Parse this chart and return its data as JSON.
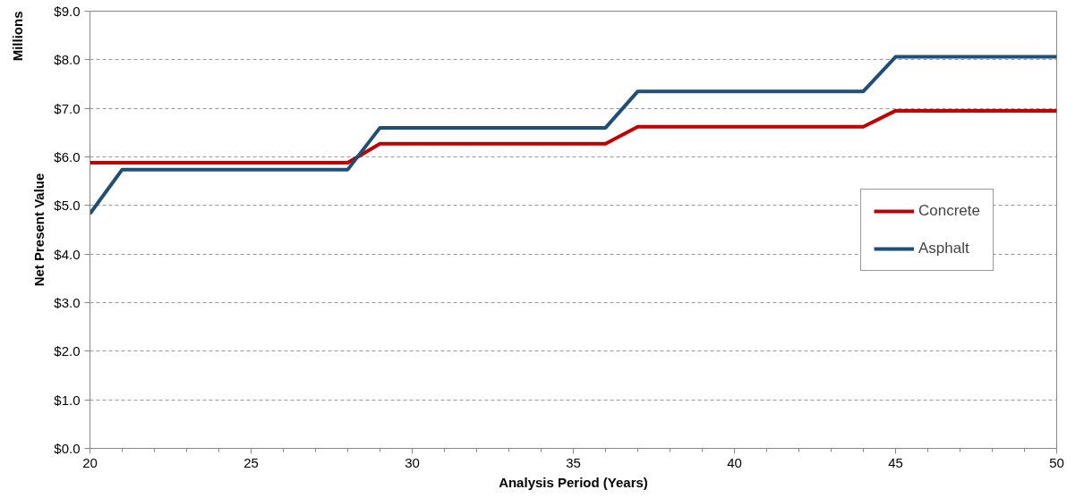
{
  "chart_data": {
    "type": "line",
    "xlabel": "Analysis Period (Years)",
    "ylabel": "Net Present Value",
    "annotations": [
      "Millions"
    ],
    "series": [
      {
        "name": "Concrete",
        "color": "#c00000",
        "x": [
          20,
          28,
          29,
          36,
          37,
          44,
          45,
          50
        ],
        "values": [
          5.88,
          5.88,
          6.27,
          6.27,
          6.62,
          6.62,
          6.95,
          6.95
        ]
      },
      {
        "name": "Asphalt",
        "color": "#1f4e79",
        "x": [
          20,
          21,
          28,
          29,
          36,
          37,
          44,
          45,
          50
        ],
        "values": [
          4.83,
          5.74,
          5.74,
          6.6,
          6.6,
          7.35,
          7.35,
          8.06,
          8.06
        ]
      }
    ],
    "xlim": [
      20,
      50
    ],
    "xticks": [
      20,
      {
        "value": 21,
        "label": null
      },
      {
        "value": 22,
        "label": null
      },
      {
        "value": 23,
        "label": null
      },
      {
        "value": 24,
        "label": null
      },
      25,
      {
        "value": 26,
        "label": null
      },
      {
        "value": 27,
        "label": null
      },
      {
        "value": 28,
        "label": null
      },
      {
        "value": 29,
        "label": null
      },
      30,
      {
        "value": 31,
        "label": null
      },
      {
        "value": 32,
        "label": null
      },
      {
        "value": 33,
        "label": null
      },
      {
        "value": 34,
        "label": null
      },
      35,
      {
        "value": 36,
        "label": null
      },
      {
        "value": 37,
        "label": null
      },
      {
        "value": 38,
        "label": null
      },
      {
        "value": 39,
        "label": null
      },
      40,
      {
        "value": 41,
        "label": null
      },
      {
        "value": 42,
        "label": null
      },
      {
        "value": 43,
        "label": null
      },
      {
        "value": 44,
        "label": null
      },
      45,
      {
        "value": 46,
        "label": null
      },
      {
        "value": 47,
        "label": null
      },
      {
        "value": 48,
        "label": null
      },
      {
        "value": 49,
        "label": null
      },
      50
    ],
    "ylim": [
      0,
      9
    ],
    "yticks": [
      {
        "value": 0,
        "label": "$0.0"
      },
      {
        "value": 1,
        "label": "$1.0"
      },
      {
        "value": 2,
        "label": "$2.0"
      },
      {
        "value": 3,
        "label": "$3.0"
      },
      {
        "value": 4,
        "label": "$4.0"
      },
      {
        "value": 5,
        "label": "$5.0"
      },
      {
        "value": 6,
        "label": "$6.0"
      },
      {
        "value": 7,
        "label": "$7.0"
      },
      {
        "value": 8,
        "label": "$8.0"
      },
      {
        "value": 9,
        "label": "$9.0"
      }
    ],
    "grid": "y",
    "legend": "right",
    "marker": "none",
    "line_style": "solid"
  }
}
